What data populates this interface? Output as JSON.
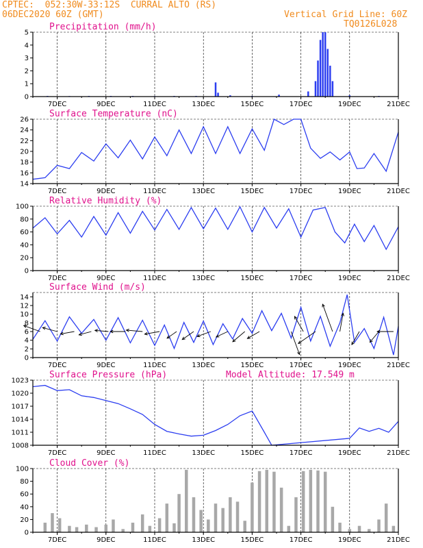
{
  "header": {
    "station": "CPTEC:  052:30W-33:12S  CURRAL ALTO (RS)",
    "run": "06DEC2020 60Z (GMT)",
    "grid_note": "Vertical Grid Line: 60Z",
    "code": "TQ0126L028"
  },
  "colors": {
    "header": "#f08a1c",
    "title": "#e0118c",
    "series": "#2b3df0",
    "cloud": "#a8a8a8"
  },
  "x_ticks": [
    "7DEC",
    "9DEC",
    "11DEC",
    "13DEC",
    "15DEC",
    "17DEC",
    "19DEC",
    "21DEC"
  ],
  "chart_data": [
    {
      "type": "bar",
      "title": "Precipitation (mm/h)",
      "x_range": [
        "06DEC",
        "21DEC"
      ],
      "ylim": [
        0,
        5
      ],
      "y_ticks": [
        "0",
        "1",
        "2",
        "3",
        "4",
        "5"
      ],
      "x_days": [
        6.6,
        7.5,
        8.3,
        9.2,
        10.1,
        11.0,
        11.8,
        12.7,
        13.5,
        13.6,
        14.1,
        15.0,
        16.1,
        17.3,
        17.6,
        17.7,
        17.8,
        17.9,
        18.0,
        18.1,
        18.2,
        18.3,
        19.0,
        20.2
      ],
      "values": [
        0.05,
        0.04,
        0.05,
        0.05,
        0.05,
        0.04,
        0.05,
        0.05,
        1.1,
        0.3,
        0.1,
        0.05,
        0.15,
        0.4,
        1.2,
        2.8,
        4.4,
        5.0,
        5.0,
        3.7,
        2.4,
        1.2,
        0.1,
        0.05
      ]
    },
    {
      "type": "line",
      "title": "Surface Temperature (nC)",
      "ylim": [
        14,
        26
      ],
      "y_ticks": [
        "14",
        "16",
        "18",
        "20",
        "22",
        "24",
        "26"
      ],
      "x": [
        6.0,
        6.5,
        7.0,
        7.5,
        8.0,
        8.5,
        9.0,
        9.5,
        10.0,
        10.5,
        11.0,
        11.5,
        12.0,
        12.5,
        13.0,
        13.5,
        14.0,
        14.5,
        15.0,
        15.5,
        15.9,
        16.3,
        16.7,
        17.0,
        17.4,
        17.8,
        18.2,
        18.6,
        19.0,
        19.3,
        19.6,
        20.0,
        20.5,
        21.0
      ],
      "y": [
        14.8,
        15.1,
        17.4,
        16.8,
        19.8,
        18.2,
        21.4,
        18.8,
        22.1,
        18.6,
        22.7,
        19.2,
        24.0,
        19.6,
        24.6,
        19.6,
        24.6,
        19.6,
        24.2,
        20.2,
        26.0,
        25.0,
        26.0,
        26.0,
        20.6,
        18.7,
        19.9,
        18.4,
        19.9,
        16.8,
        16.9,
        19.6,
        16.3,
        23.6
      ]
    },
    {
      "type": "line",
      "title": "Relative Humidity (%)",
      "ylim": [
        0,
        100
      ],
      "y_ticks": [
        "0",
        "20",
        "40",
        "60",
        "80",
        "100"
      ],
      "x": [
        6.0,
        6.5,
        7.0,
        7.5,
        8.0,
        8.5,
        9.0,
        9.5,
        10.0,
        10.5,
        11.0,
        11.5,
        12.0,
        12.5,
        13.0,
        13.5,
        14.0,
        14.5,
        15.0,
        15.5,
        16.0,
        16.5,
        17.0,
        17.5,
        18.0,
        18.4,
        18.8,
        19.2,
        19.6,
        20.0,
        20.5,
        21.0
      ],
      "y": [
        66,
        82,
        57,
        78,
        52,
        84,
        55,
        90,
        58,
        92,
        63,
        95,
        64,
        98,
        65,
        97,
        64,
        99,
        60,
        98,
        66,
        96,
        52,
        94,
        98,
        60,
        43,
        72,
        45,
        70,
        33,
        68
      ]
    },
    {
      "type": "line",
      "title": "Surface Wind (m/s)",
      "ylim": [
        0,
        15
      ],
      "y_ticks": [
        "0",
        "2",
        "4",
        "6",
        "8",
        "10",
        "12",
        "14"
      ],
      "x": [
        6.0,
        6.5,
        7.0,
        7.5,
        8.0,
        8.5,
        9.0,
        9.5,
        10.0,
        10.5,
        11.0,
        11.4,
        11.8,
        12.2,
        12.6,
        13.0,
        13.4,
        13.8,
        14.2,
        14.6,
        15.0,
        15.4,
        15.8,
        16.2,
        16.6,
        17.0,
        17.4,
        17.8,
        18.2,
        18.6,
        18.9,
        19.2,
        19.6,
        20.0,
        20.4,
        20.8,
        21.0
      ],
      "y": [
        4.2,
        8.5,
        3.8,
        9.4,
        5.6,
        8.8,
        4.0,
        9.2,
        3.4,
        8.6,
        2.8,
        7.5,
        2.1,
        8.1,
        3.5,
        8.4,
        3.0,
        7.8,
        4.3,
        9.0,
        5.6,
        10.8,
        6.2,
        10.2,
        4.5,
        11.6,
        3.8,
        9.5,
        2.6,
        8.0,
        14.5,
        3.5,
        6.7,
        2.1,
        9.3,
        0.6,
        7.2
      ]
    },
    {
      "type": "line",
      "title": "Surface Pressure (hPa)",
      "annotation": "Model Altitude: 17.549 m",
      "ylim": [
        1008,
        1023
      ],
      "y_ticks": [
        "1008",
        "1011",
        "1014",
        "1017",
        "1020",
        "1023"
      ],
      "x": [
        6.0,
        6.5,
        7.0,
        7.5,
        8.0,
        8.5,
        9.0,
        9.5,
        10.0,
        10.5,
        11.0,
        11.5,
        12.0,
        12.5,
        13.0,
        13.5,
        14.0,
        14.5,
        15.0,
        15.5,
        15.8,
        19.0,
        19.4,
        19.8,
        20.2,
        20.6,
        21.0
      ],
      "y": [
        1021.5,
        1021.8,
        1020.6,
        1020.8,
        1019.4,
        1019.0,
        1018.3,
        1017.6,
        1016.4,
        1015.1,
        1012.8,
        1011.2,
        1010.6,
        1010.1,
        1010.3,
        1011.4,
        1012.8,
        1014.8,
        1015.9,
        1011.0,
        1008.0,
        1009.6,
        1012.0,
        1011.2,
        1011.9,
        1011.0,
        1013.5
      ]
    },
    {
      "type": "bar",
      "title": "Cloud Cover (%)",
      "ylim": [
        0,
        100
      ],
      "y_ticks": [
        "0",
        "20",
        "40",
        "60",
        "80",
        "100"
      ],
      "x_days": [
        6.5,
        6.8,
        7.1,
        7.5,
        7.8,
        8.2,
        8.6,
        9.0,
        9.3,
        9.7,
        10.1,
        10.5,
        10.8,
        11.2,
        11.5,
        11.8,
        12.0,
        12.3,
        12.6,
        12.9,
        13.2,
        13.5,
        13.8,
        14.1,
        14.4,
        14.7,
        15.0,
        15.3,
        15.6,
        15.9,
        16.2,
        16.5,
        16.8,
        17.1,
        17.4,
        17.7,
        18.0,
        18.3,
        18.6,
        19.0,
        19.4,
        19.8,
        20.2,
        20.5,
        20.8
      ],
      "values": [
        15,
        30,
        22,
        10,
        8,
        12,
        8,
        12,
        20,
        5,
        15,
        28,
        10,
        22,
        45,
        14,
        60,
        98,
        55,
        35,
        20,
        45,
        38,
        55,
        48,
        18,
        78,
        96,
        98,
        95,
        70,
        10,
        55,
        96,
        98,
        97,
        95,
        40,
        15,
        5,
        10,
        5,
        20,
        45,
        10
      ]
    }
  ],
  "wind_vectors": {
    "x_days": [
      6.3,
      7.0,
      7.7,
      8.4,
      9.1,
      9.8,
      10.5,
      11.2,
      11.9,
      12.6,
      13.3,
      14.0,
      14.7,
      15.3,
      16.6,
      17.1,
      17.6,
      18.3,
      18.6,
      19.4,
      20.2,
      20.8
    ],
    "speed": [
      7.5,
      6.5,
      6.0,
      5.5,
      5.8,
      6.5,
      7.0,
      6.5,
      5.0,
      6.0,
      6.2,
      5.5,
      6.8,
      6.0,
      10.5,
      7.5,
      9.0,
      12.5,
      8.0,
      6.5,
      6.0,
      7.0
    ],
    "dir_deg": [
      160,
      165,
      190,
      195,
      175,
      180,
      175,
      190,
      215,
      215,
      200,
      205,
      220,
      210,
      290,
      120,
      215,
      110,
      80,
      240,
      230,
      180
    ]
  }
}
